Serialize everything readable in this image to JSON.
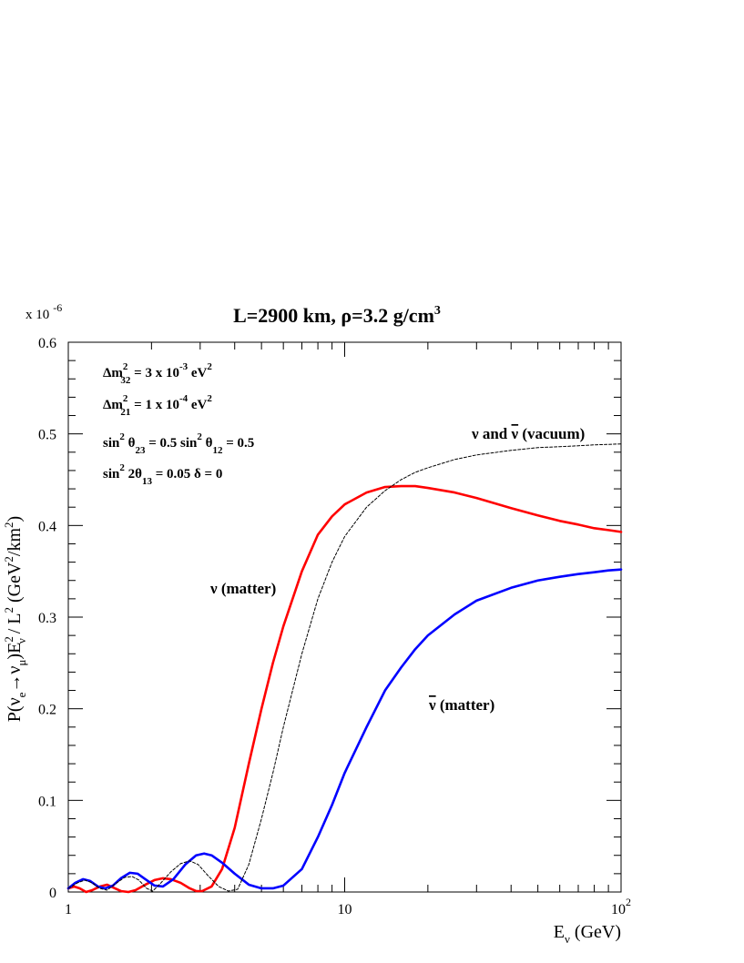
{
  "chart_data": {
    "type": "line",
    "title": {
      "main": "L=2900 km, ",
      "rho": "ρ",
      "rest": "=3.2 g/cm",
      "sup": "3"
    },
    "y_multiplier": {
      "base": "x 10",
      "exp": "-6"
    },
    "xlabel": {
      "main": "E",
      "sub": "ν",
      "rest": " (GeV)"
    },
    "ylabel": {
      "P": "P(",
      "nu1": "ν",
      "sub_e": "e",
      "arrow": "→",
      "nu2": "ν",
      "sub_mu": "μ",
      "paren": ")E",
      "sub_nu": "ν",
      "sup2": "2",
      "perL": " / L",
      "sup2b": "2",
      "units": "(GeV",
      "sup2c": "2",
      "unit_rest": "/km",
      "sup2d": "2",
      "close": ")"
    },
    "x_scale": "log",
    "xlim": [
      1,
      100
    ],
    "ylim": [
      0,
      0.6
    ],
    "x_tick_labels": [
      {
        "value": 1,
        "label": "1"
      },
      {
        "value": 10,
        "label": "10"
      },
      {
        "value": 100,
        "label": "10",
        "exp": "2"
      }
    ],
    "y_tick_labels": [
      {
        "value": 0,
        "label": "0"
      },
      {
        "value": 0.1,
        "label": "0.1"
      },
      {
        "value": 0.2,
        "label": "0.2"
      },
      {
        "value": 0.3,
        "label": "0.3"
      },
      {
        "value": 0.4,
        "label": "0.4"
      },
      {
        "value": 0.5,
        "label": "0.5"
      },
      {
        "value": 0.6,
        "label": "0.6"
      }
    ],
    "parameters": [
      {
        "parts": [
          [
            "t",
            "Δm"
          ],
          [
            "sup",
            "2"
          ],
          [
            "sub",
            "32"
          ],
          [
            "t",
            " = 3 x 10"
          ],
          [
            "sup",
            "-3"
          ],
          [
            "t",
            " eV"
          ],
          [
            "sup",
            "2"
          ]
        ]
      },
      {
        "parts": [
          [
            "t",
            "Δm"
          ],
          [
            "sup",
            "2"
          ],
          [
            "sub",
            "21"
          ],
          [
            "t",
            " = 1 x 10"
          ],
          [
            "sup",
            "-4"
          ],
          [
            "t",
            " eV"
          ],
          [
            "sup",
            "2"
          ]
        ]
      },
      {
        "parts": [
          [
            "t",
            "sin"
          ],
          [
            "sup",
            "2"
          ],
          [
            "t",
            " θ"
          ],
          [
            "sub",
            "23"
          ],
          [
            "t",
            " = 0.5    sin"
          ],
          [
            "sup",
            "2"
          ],
          [
            "t",
            " θ"
          ],
          [
            "sub",
            "12"
          ],
          [
            "t",
            " = 0.5"
          ]
        ]
      },
      {
        "parts": [
          [
            "t",
            "sin"
          ],
          [
            "sup",
            "2"
          ],
          [
            "t",
            " 2θ"
          ],
          [
            "sub",
            "13"
          ],
          [
            "t",
            " = 0.05    δ = 0"
          ]
        ]
      }
    ],
    "annotations": {
      "vacuum": {
        "pre": "ν and ",
        "nubar": "ν",
        "post": " (vacuum)"
      },
      "nu_matter": {
        "text": "ν (matter)"
      },
      "antinu_matter": {
        "nubar": "ν",
        "post": " (matter)"
      }
    },
    "series": [
      {
        "color": "#ff0000",
        "style": "solid",
        "points": [
          [
            1.0,
            0.004
          ],
          [
            1.05,
            0.006
          ],
          [
            1.1,
            0.004
          ],
          [
            1.16,
            0.0
          ],
          [
            1.22,
            0.002
          ],
          [
            1.3,
            0.006
          ],
          [
            1.38,
            0.008
          ],
          [
            1.45,
            0.005
          ],
          [
            1.55,
            0.001
          ],
          [
            1.65,
            0.0
          ],
          [
            1.75,
            0.002
          ],
          [
            1.9,
            0.008
          ],
          [
            2.05,
            0.013
          ],
          [
            2.2,
            0.015
          ],
          [
            2.35,
            0.014
          ],
          [
            2.55,
            0.01
          ],
          [
            2.75,
            0.004
          ],
          [
            2.9,
            0.001
          ],
          [
            3.05,
            0.001
          ],
          [
            3.3,
            0.006
          ],
          [
            3.6,
            0.025
          ],
          [
            4.0,
            0.07
          ],
          [
            4.5,
            0.14
          ],
          [
            5.0,
            0.2
          ],
          [
            5.5,
            0.25
          ],
          [
            6.0,
            0.29
          ],
          [
            7.0,
            0.35
          ],
          [
            8.0,
            0.39
          ],
          [
            9.0,
            0.41
          ],
          [
            10.0,
            0.423
          ],
          [
            12.0,
            0.436
          ],
          [
            14.0,
            0.442
          ],
          [
            16.0,
            0.443
          ],
          [
            18.0,
            0.443
          ],
          [
            20.0,
            0.441
          ],
          [
            25.0,
            0.436
          ],
          [
            30.0,
            0.43
          ],
          [
            40.0,
            0.419
          ],
          [
            50.0,
            0.411
          ],
          [
            60.0,
            0.405
          ],
          [
            70.0,
            0.401
          ],
          [
            80.0,
            0.397
          ],
          [
            90.0,
            0.395
          ],
          [
            100.0,
            0.393
          ]
        ]
      },
      {
        "color": "#0000ff",
        "style": "solid",
        "points": [
          [
            1.0,
            0.004
          ],
          [
            1.06,
            0.01
          ],
          [
            1.13,
            0.014
          ],
          [
            1.2,
            0.012
          ],
          [
            1.28,
            0.006
          ],
          [
            1.36,
            0.004
          ],
          [
            1.45,
            0.007
          ],
          [
            1.55,
            0.015
          ],
          [
            1.67,
            0.021
          ],
          [
            1.78,
            0.02
          ],
          [
            1.9,
            0.014
          ],
          [
            2.05,
            0.007
          ],
          [
            2.2,
            0.006
          ],
          [
            2.4,
            0.014
          ],
          [
            2.65,
            0.03
          ],
          [
            2.9,
            0.04
          ],
          [
            3.1,
            0.042
          ],
          [
            3.3,
            0.04
          ],
          [
            3.6,
            0.032
          ],
          [
            4.0,
            0.02
          ],
          [
            4.5,
            0.008
          ],
          [
            5.0,
            0.004
          ],
          [
            5.5,
            0.004
          ],
          [
            6.0,
            0.007
          ],
          [
            7.0,
            0.025
          ],
          [
            8.0,
            0.06
          ],
          [
            9.0,
            0.095
          ],
          [
            10.0,
            0.13
          ],
          [
            12.0,
            0.18
          ],
          [
            14.0,
            0.22
          ],
          [
            16.0,
            0.245
          ],
          [
            18.0,
            0.265
          ],
          [
            20.0,
            0.28
          ],
          [
            25.0,
            0.303
          ],
          [
            30.0,
            0.318
          ],
          [
            40.0,
            0.332
          ],
          [
            50.0,
            0.34
          ],
          [
            60.0,
            0.344
          ],
          [
            70.0,
            0.347
          ],
          [
            80.0,
            0.349
          ],
          [
            90.0,
            0.351
          ],
          [
            100.0,
            0.352
          ]
        ]
      },
      {
        "color": "#000000",
        "style": "dashed",
        "points": [
          [
            1.0,
            0.004
          ],
          [
            1.08,
            0.01
          ],
          [
            1.15,
            0.013
          ],
          [
            1.22,
            0.01
          ],
          [
            1.3,
            0.004
          ],
          [
            1.38,
            0.002
          ],
          [
            1.48,
            0.009
          ],
          [
            1.6,
            0.016
          ],
          [
            1.7,
            0.017
          ],
          [
            1.8,
            0.013
          ],
          [
            1.92,
            0.004
          ],
          [
            2.02,
            0.001
          ],
          [
            2.15,
            0.009
          ],
          [
            2.35,
            0.022
          ],
          [
            2.55,
            0.031
          ],
          [
            2.75,
            0.034
          ],
          [
            2.95,
            0.03
          ],
          [
            3.2,
            0.018
          ],
          [
            3.5,
            0.006
          ],
          [
            3.8,
            0.001
          ],
          [
            4.1,
            0.003
          ],
          [
            4.5,
            0.03
          ],
          [
            5.0,
            0.08
          ],
          [
            5.5,
            0.13
          ],
          [
            6.0,
            0.18
          ],
          [
            7.0,
            0.26
          ],
          [
            8.0,
            0.32
          ],
          [
            9.0,
            0.36
          ],
          [
            10.0,
            0.388
          ],
          [
            12.0,
            0.42
          ],
          [
            14.0,
            0.438
          ],
          [
            16.0,
            0.45
          ],
          [
            18.0,
            0.458
          ],
          [
            20.0,
            0.463
          ],
          [
            25.0,
            0.472
          ],
          [
            30.0,
            0.477
          ],
          [
            40.0,
            0.482
          ],
          [
            50.0,
            0.485
          ],
          [
            60.0,
            0.486
          ],
          [
            70.0,
            0.487
          ],
          [
            80.0,
            0.488
          ],
          [
            100.0,
            0.489
          ]
        ]
      }
    ]
  }
}
